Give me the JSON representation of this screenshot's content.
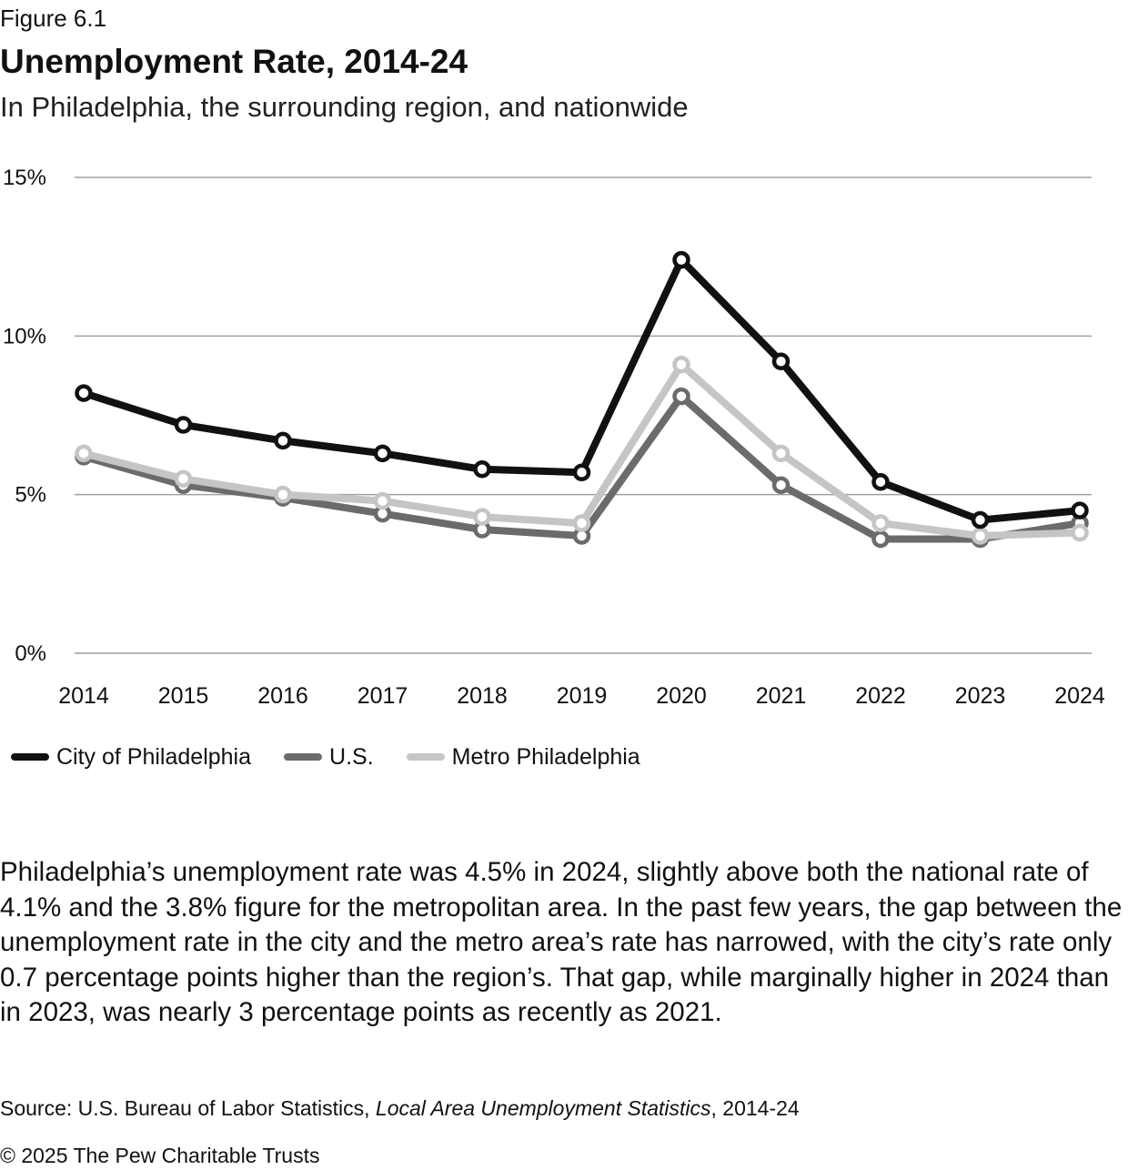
{
  "figure_label": "Figure 6.1",
  "title": "Unemployment Rate, 2014-24",
  "subtitle": "In Philadelphia, the surrounding region, and nationwide",
  "chart_data": {
    "type": "line",
    "title": "Unemployment Rate, 2014-24",
    "subtitle": "In Philadelphia, the surrounding region, and nationwide",
    "xlabel": "",
    "ylabel": "",
    "categories": [
      "2014",
      "2015",
      "2016",
      "2017",
      "2018",
      "2019",
      "2020",
      "2021",
      "2022",
      "2023",
      "2024"
    ],
    "ylim": [
      0,
      15
    ],
    "yticks": [
      0,
      5,
      10,
      15
    ],
    "ytick_labels": [
      "0%",
      "5%",
      "10%",
      "15%"
    ],
    "grid": true,
    "legend_position": "bottom-left",
    "series": [
      {
        "name": "U.S.",
        "color": "#6b6b6b",
        "values": [
          6.2,
          5.3,
          4.9,
          4.4,
          3.9,
          3.7,
          8.1,
          5.3,
          3.6,
          3.6,
          4.1
        ]
      },
      {
        "name": "Metro Philadelphia",
        "color": "#c6c4c4",
        "values": [
          6.3,
          5.5,
          5.0,
          4.8,
          4.3,
          4.1,
          9.1,
          6.3,
          4.1,
          3.7,
          3.8
        ]
      },
      {
        "name": "City of Philadelphia",
        "color": "#111111",
        "values": [
          8.2,
          7.2,
          6.7,
          6.3,
          5.8,
          5.7,
          12.4,
          9.2,
          5.4,
          4.2,
          4.5
        ]
      }
    ],
    "legend_order": [
      "City of Philadelphia",
      "U.S.",
      "Metro Philadelphia"
    ]
  },
  "legend": [
    {
      "label": "City of Philadelphia",
      "color": "#111111"
    },
    {
      "label": "U.S.",
      "color": "#6b6b6b"
    },
    {
      "label": "Metro Philadelphia",
      "color": "#c6c4c4"
    }
  ],
  "body_text": "Philadelphia’s unemployment rate was 4.5% in 2024, slightly above both the national rate of 4.1% and the 3.8% figure for the metropolitan area. In the past few years, the gap between the unemployment rate in the city and the metro area’s rate has narrowed, with the city’s rate only 0.7 percentage points higher than the region’s. That gap, while marginally higher in 2024 than in 2023, was nearly 3 percentage points as recently as 2021.",
  "source": {
    "prefix": "Source: U.S. Bureau of Labor Statistics, ",
    "italic": "Local Area Unemployment Statistics",
    "suffix": ", 2014-24"
  },
  "copyright": "© 2025 The Pew Charitable Trusts",
  "colors": {
    "gridline": "#a0a0a0",
    "text": "#111111"
  }
}
